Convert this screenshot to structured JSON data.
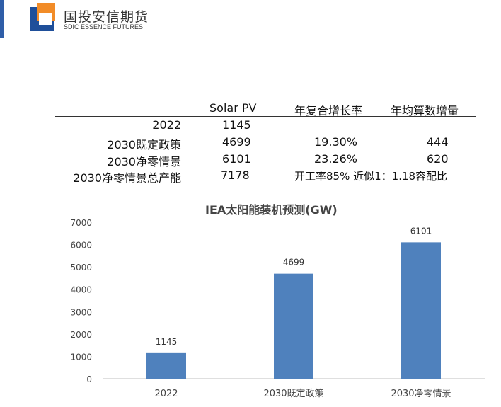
{
  "header": {
    "brand_cn": "国投安信期货",
    "brand_en": "SDIC ESSENCE FUTURES"
  },
  "table": {
    "columns": [
      "Solar PV",
      "年复合增长率",
      "年均算数增量"
    ],
    "rows": [
      {
        "label": "2022",
        "value": "1145",
        "rate": "",
        "increment": ""
      },
      {
        "label": "2030既定政策",
        "value": "4699",
        "rate": "19.30%",
        "increment": "444"
      },
      {
        "label": "2030净零情景",
        "value": "6101",
        "rate": "23.26%",
        "increment": "620"
      },
      {
        "label": "2030净零情景总产能",
        "value": "7178",
        "rate": "开工率85% 近似1：1.18容配比",
        "increment": ""
      }
    ]
  },
  "chart_data": {
    "type": "bar",
    "title": "IEA太阳能装机预测(GW)",
    "categories": [
      "2022",
      "2030既定政策",
      "2030净零情景"
    ],
    "values": [
      1145,
      4699,
      6101
    ],
    "data_labels": [
      "1145",
      "4699",
      "6101"
    ],
    "ylim": [
      0,
      7000
    ],
    "yticks": [
      "0",
      "1000",
      "2000",
      "3000",
      "4000",
      "5000",
      "6000",
      "7000"
    ],
    "xlabel": "",
    "ylabel": "",
    "grid": false,
    "bar_color": "#4f81bd"
  }
}
